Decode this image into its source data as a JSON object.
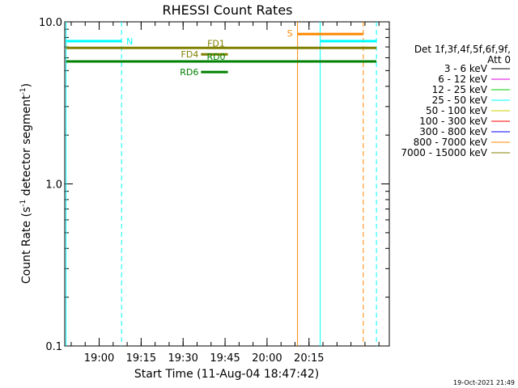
{
  "chart_data": {
    "type": "line",
    "title": "RHESSI Count Rates",
    "xlabel": "Start Time (11-Aug-04 18:47:42)",
    "ylabel_main": "Count Rate (s",
    "ylabel_sup1": "-1",
    "ylabel_mid": " detector segment",
    "ylabel_sup2": "-1",
    "ylabel_end": ")",
    "yscale": "log",
    "ylim": [
      0.1,
      10.0
    ],
    "xlim_minutes": [
      0,
      116
    ],
    "x_ticks": [
      {
        "label": "19:00",
        "minute": 12.3
      },
      {
        "label": "19:15",
        "minute": 27.3
      },
      {
        "label": "19:30",
        "minute": 42.3
      },
      {
        "label": "19:45",
        "minute": 57.3
      },
      {
        "label": "20:00",
        "minute": 72.3
      },
      {
        "label": "20:15",
        "minute": 87.3
      }
    ],
    "y_ticks": [
      {
        "label": "10.0",
        "value": 10.0
      },
      {
        "label": "1.0",
        "value": 1.0
      },
      {
        "label": "0.1",
        "value": 0.1
      }
    ],
    "legend": {
      "title1": "Det 1f,3f,4f,5f,6f,9f,",
      "title2": "Att 0",
      "entries": [
        {
          "label": "3 - 6 keV",
          "color": "#000000"
        },
        {
          "label": "6 - 12 keV",
          "color": "#dd00dd"
        },
        {
          "label": "12 - 25 keV",
          "color": "#00cc00"
        },
        {
          "label": "25 - 50 keV",
          "color": "#00ffff"
        },
        {
          "label": "50 - 100 keV",
          "color": "#cccc00"
        },
        {
          "label": "100 - 300 keV",
          "color": "#ff0000"
        },
        {
          "label": "300 - 800 keV",
          "color": "#0000ff"
        },
        {
          "label": "800 - 7000 keV",
          "color": "#ff8800"
        },
        {
          "label": "7000 - 15000 keV",
          "color": "#808000"
        }
      ]
    },
    "intervals": [
      {
        "label": "N",
        "color": "#00ffff",
        "x0": 0.5,
        "x1": 20.3,
        "y": 7.6
      },
      {
        "label": "",
        "color": "#00ffff",
        "x0": 91.3,
        "x1": 111.4,
        "y": 7.6
      },
      {
        "label": "S",
        "color": "#ff8800",
        "x0": 83.2,
        "x1": 106.7,
        "y": 8.4
      },
      {
        "label": "FD1",
        "color": "#808000",
        "x0": 0.5,
        "x1": 111.4,
        "y": 6.9
      },
      {
        "label": "FD4",
        "color": "#808000",
        "x0": 48.7,
        "x1": 58.3,
        "y": 6.3
      },
      {
        "label": "RD0",
        "color": "#008000",
        "x0": 0.5,
        "x1": 111.4,
        "y": 5.7
      },
      {
        "label": "RD6",
        "color": "#008000",
        "x0": 48.7,
        "x1": 58.3,
        "y": 4.9
      }
    ],
    "vlines": [
      {
        "minute": 0.5,
        "color": "#00ffff",
        "style": "solid"
      },
      {
        "minute": 20.3,
        "color": "#00ffff",
        "style": "dashed"
      },
      {
        "minute": 83.2,
        "color": "#ff8800",
        "style": "solid"
      },
      {
        "minute": 91.3,
        "color": "#00ffff",
        "style": "solid"
      },
      {
        "minute": 106.7,
        "color": "#ff8800",
        "style": "dashed"
      },
      {
        "minute": 111.4,
        "color": "#00ffff",
        "style": "dashed"
      }
    ],
    "timestamp": "19-Oct-2021 21:49"
  }
}
